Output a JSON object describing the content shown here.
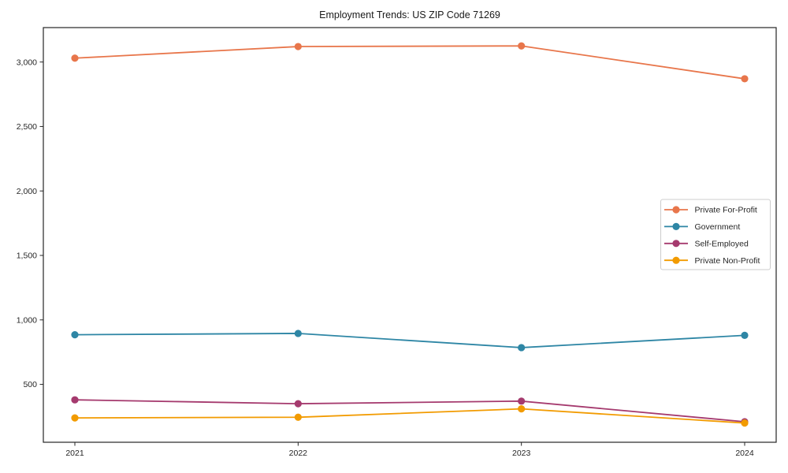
{
  "page": {
    "background": "#ffffff",
    "frame_color": "#262626",
    "tick_color": "#262626"
  },
  "chart_data": {
    "type": "line",
    "title": "Employment Trends: US ZIP Code 71269",
    "xlabel": "",
    "ylabel": "",
    "categories": [
      "2021",
      "2022",
      "2023",
      "2024"
    ],
    "series": [
      {
        "name": "Private For-Profit",
        "color": "#e8764b",
        "values": [
          3030,
          3120,
          3125,
          2870
        ]
      },
      {
        "name": "Government",
        "color": "#2e86a5",
        "values": [
          885,
          895,
          785,
          880
        ]
      },
      {
        "name": "Self-Employed",
        "color": "#a53a6e",
        "values": [
          380,
          350,
          370,
          210
        ]
      },
      {
        "name": "Private Non-Profit",
        "color": "#f29b01",
        "values": [
          240,
          245,
          310,
          200
        ]
      }
    ],
    "ylim": [
      51,
      3267
    ],
    "yticks": {
      "values": [
        500,
        1000,
        1500,
        2000,
        2500,
        3000
      ],
      "labels": [
        "500",
        "1,000",
        "1,500",
        "2,000",
        "2,500",
        "3,000"
      ]
    },
    "grid": false,
    "legend_position": "center-right",
    "legend_border_color": "#cccccc",
    "marker": "circle"
  }
}
